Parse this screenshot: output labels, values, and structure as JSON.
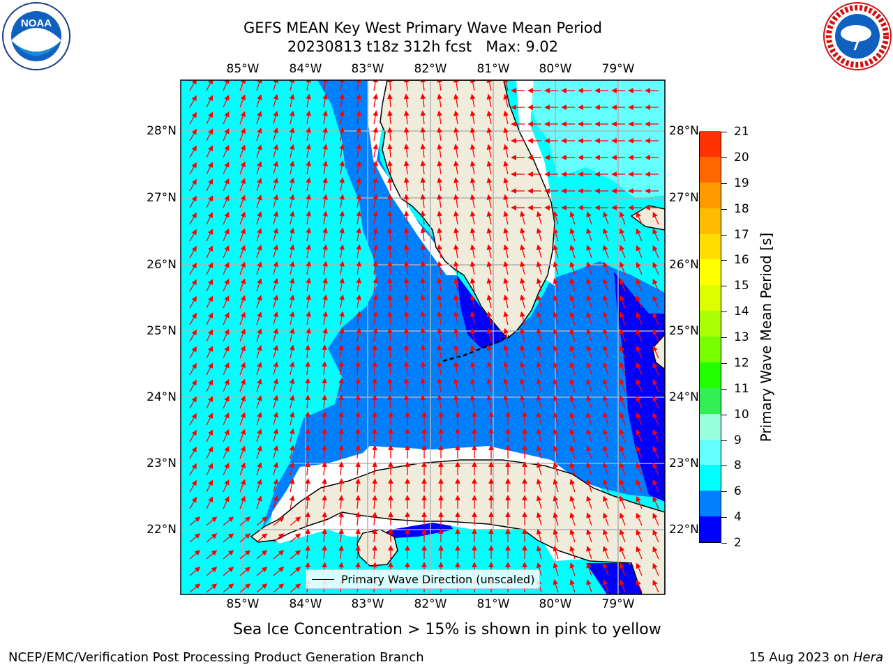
{
  "header": {
    "title_line1": "GEFS MEAN Key West Primary Wave Mean Period",
    "title_line2": "20230813 t18z 312h fcst   Max: 9.02"
  },
  "map": {
    "lon_labels": [
      "85°W",
      "84°W",
      "83°W",
      "82°W",
      "81°W",
      "80°W",
      "79°W"
    ],
    "lat_labels": [
      "28°N",
      "27°N",
      "26°N",
      "25°N",
      "24°N",
      "23°N",
      "22°N"
    ],
    "colors": {
      "ocean_light": "#00ffff",
      "ocean_mid": "#0080ff",
      "ocean_dark": "#0000ff",
      "ocean_pale": "#66ffff",
      "land": "#efecdc",
      "arrow": "#ff0000",
      "grid": "#b0b0b0"
    }
  },
  "legend": {
    "label": "Primary Wave Direction (unscaled)"
  },
  "colorbar": {
    "title": "Primary Wave Mean Period [s]",
    "ticks": [
      "2",
      "4",
      "6",
      "8",
      "9",
      "10",
      "11",
      "12",
      "13",
      "14",
      "15",
      "16",
      "17",
      "18",
      "19",
      "20",
      "21"
    ],
    "colors": [
      "#0000ff",
      "#0080ff",
      "#00ffff",
      "#66ffff",
      "#99ffdd",
      "#33ee55",
      "#22ff00",
      "#77ff00",
      "#aaff00",
      "#ddff00",
      "#ffff00",
      "#ffdd00",
      "#ffbb00",
      "#ff9900",
      "#ff6600",
      "#ff3300",
      "#ff0000"
    ]
  },
  "subtitle": "Sea Ice Concentration > 15% is shown in pink to yellow",
  "footer": {
    "left": "NCEP/EMC/Verification Post Processing Product Generation Branch",
    "right_date": "15 Aug 2023 on ",
    "right_host": "Hera"
  },
  "logos": {
    "noaa": "NOAA",
    "nws": "NATIONAL WEATHER SERVICE"
  }
}
